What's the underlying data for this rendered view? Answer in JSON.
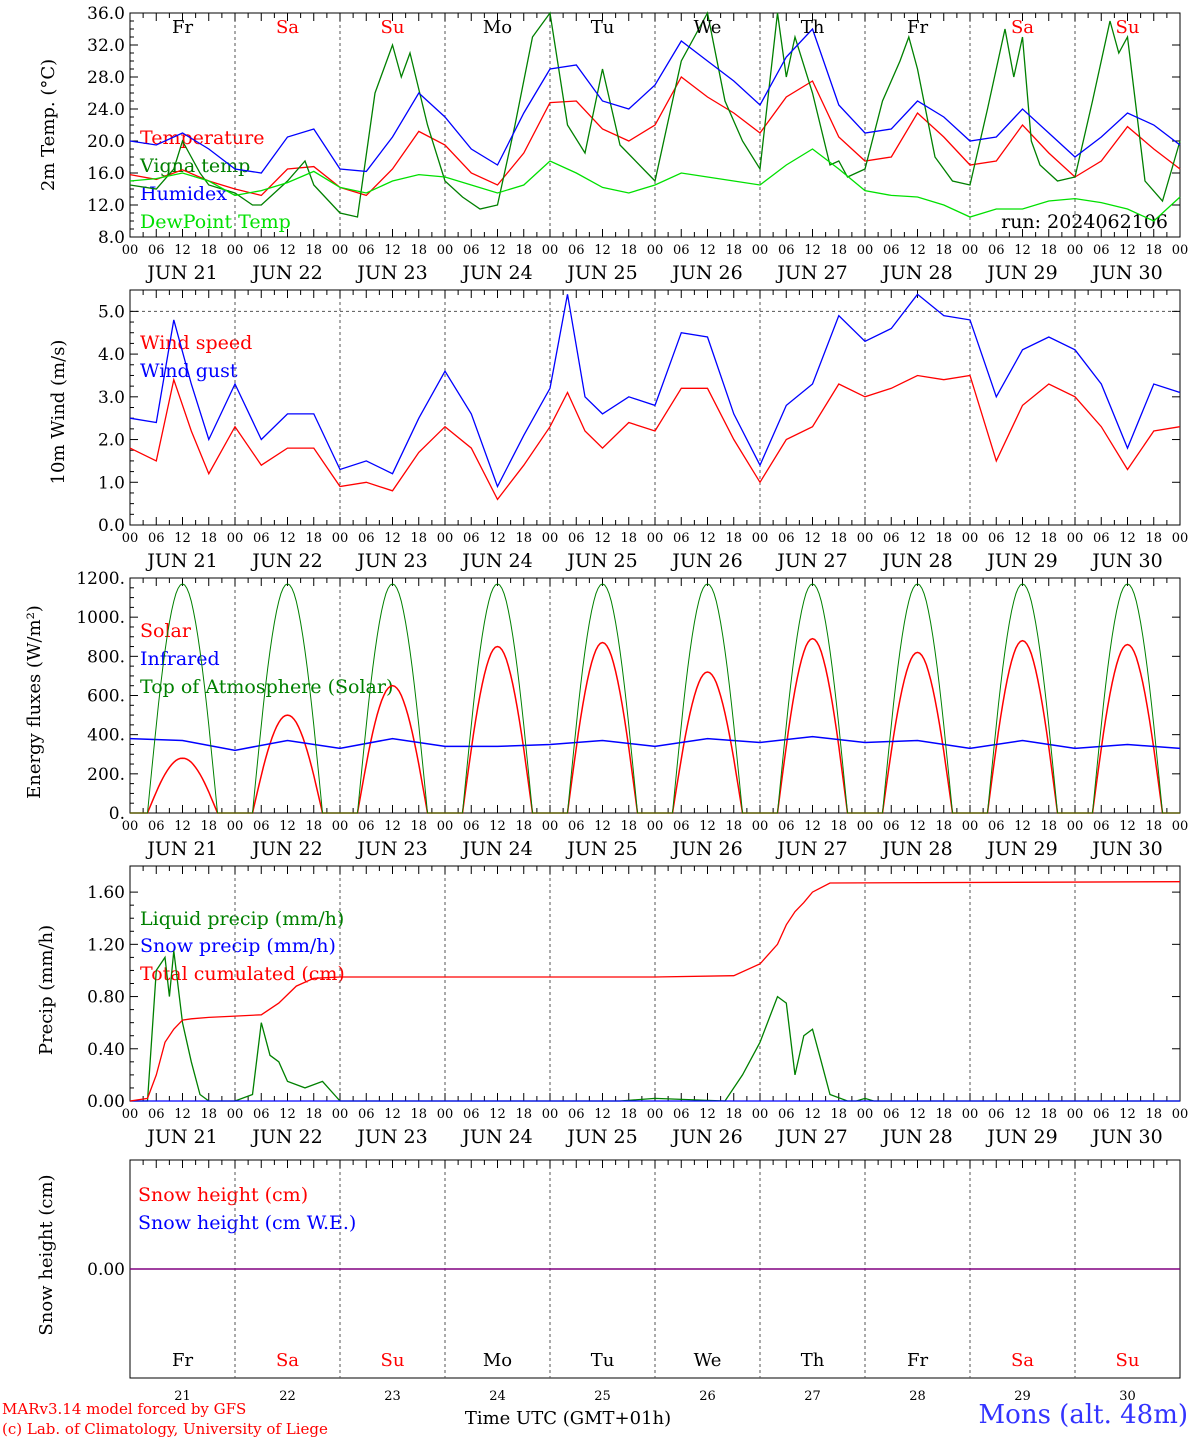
{
  "days": [
    "Fr",
    "Sa",
    "Su",
    "Mo",
    "Tu",
    "We",
    "Th",
    "Fr",
    "Sa",
    "Su"
  ],
  "day_colors": [
    "#000000",
    "#ff0000",
    "#ff0000",
    "#000000",
    "#000000",
    "#000000",
    "#000000",
    "#000000",
    "#ff0000",
    "#ff0000"
  ],
  "dates": [
    "JUN 21",
    "JUN 22",
    "JUN 23",
    "JUN 24",
    "JUN 25",
    "JUN 26",
    "JUN 27",
    "JUN 28",
    "JUN 29",
    "JUN 30"
  ],
  "date_numbers": [
    "21",
    "22",
    "23",
    "24",
    "25",
    "26",
    "27",
    "28",
    "29",
    "30"
  ],
  "hour_labels": [
    "00",
    "06",
    "12",
    "18"
  ],
  "run_label": "run: 2024062106",
  "xlabel": "Time UTC (GMT+01h)",
  "credit_line1": "MARv3.14 model forced by GFS",
  "credit_line2": "(c) Lab. of Climatology, University of Liege",
  "station": "Mons (alt. 48m)",
  "colors": {
    "red": "#ff0000",
    "green": "#008000",
    "blue": "#0000ff",
    "lightgreen": "#00e000",
    "purple": "#800080"
  },
  "chart_data": [
    {
      "type": "line",
      "ylabel": "2m Temp. (°C)",
      "ylim": [
        8,
        36
      ],
      "y_ticks": [
        "8.0",
        "12.0",
        "16.0",
        "20.0",
        "24.0",
        "28.0",
        "32.0",
        "36.0"
      ],
      "x_unit": "hours since JUN 21 00 UTC",
      "series": [
        {
          "name": "Temperature",
          "color": "#ff0000",
          "x": [
            0,
            6,
            12,
            18,
            24,
            30,
            36,
            42,
            48,
            54,
            60,
            66,
            72,
            78,
            84,
            90,
            96,
            102,
            108,
            114,
            120,
            126,
            132,
            138,
            144,
            150,
            156,
            162,
            168,
            174,
            180,
            186,
            192,
            198,
            204,
            210,
            216,
            222,
            228,
            234,
            240
          ],
          "y": [
            15.8,
            15.2,
            16.4,
            15.0,
            14.0,
            13.2,
            16.5,
            16.8,
            14.2,
            13.2,
            16.5,
            21.2,
            19.5,
            16.0,
            14.5,
            18.5,
            24.8,
            25.0,
            21.5,
            20.0,
            22.0,
            28.0,
            25.5,
            23.5,
            21.0,
            25.5,
            27.5,
            20.5,
            17.5,
            18.0,
            23.5,
            20.5,
            17.0,
            17.5,
            22.0,
            18.5,
            15.5,
            17.5,
            21.8,
            19.0,
            16.5
          ]
        },
        {
          "name": "Vigna temp",
          "color": "#008000",
          "x": [
            0,
            6,
            10,
            12,
            16,
            18,
            24,
            28,
            30,
            36,
            40,
            42,
            48,
            52,
            56,
            60,
            62,
            64,
            68,
            72,
            76,
            80,
            84,
            88,
            92,
            96,
            100,
            104,
            108,
            112,
            120,
            126,
            132,
            136,
            140,
            144,
            148,
            150,
            152,
            156,
            160,
            162,
            164,
            168,
            172,
            176,
            178,
            180,
            184,
            188,
            192,
            196,
            200,
            202,
            204,
            206,
            208,
            212,
            216,
            220,
            224,
            226,
            228,
            232,
            236,
            240
          ],
          "y": [
            14.5,
            14.0,
            16.5,
            20.0,
            16.0,
            14.5,
            13.5,
            12.0,
            12.0,
            15.0,
            17.5,
            14.5,
            11.0,
            10.5,
            26.0,
            32.0,
            28.0,
            31.0,
            22.0,
            15.0,
            13.0,
            11.5,
            12.0,
            22.0,
            33.0,
            36.0,
            22.0,
            18.5,
            29.0,
            19.5,
            15.0,
            30.0,
            36.0,
            25.0,
            20.0,
            16.5,
            36.0,
            28.0,
            33.0,
            26.0,
            17.0,
            17.5,
            15.5,
            16.5,
            25.0,
            30.0,
            33.0,
            29.0,
            18.0,
            15.0,
            14.5,
            24.0,
            34.0,
            28.0,
            33.0,
            20.0,
            17.0,
            15.0,
            15.5,
            25.0,
            35.0,
            31.0,
            33.0,
            15.0,
            12.5,
            20.0
          ]
        },
        {
          "name": "Humidex",
          "color": "#0000ff",
          "x": [
            0,
            6,
            12,
            18,
            24,
            30,
            36,
            42,
            48,
            54,
            60,
            66,
            72,
            78,
            84,
            90,
            96,
            102,
            108,
            114,
            120,
            126,
            132,
            138,
            144,
            150,
            156,
            162,
            168,
            174,
            180,
            186,
            192,
            198,
            204,
            210,
            216,
            222,
            228,
            234,
            240
          ],
          "y": [
            20.0,
            19.5,
            21.0,
            19.0,
            16.5,
            16.0,
            20.5,
            21.5,
            16.5,
            16.2,
            20.5,
            26.0,
            23.0,
            19.0,
            17.0,
            23.5,
            29.0,
            29.5,
            25.0,
            24.0,
            27.0,
            32.5,
            30.0,
            27.5,
            24.5,
            30.5,
            34.0,
            24.5,
            21.0,
            21.5,
            25.0,
            23.0,
            20.0,
            20.5,
            24.0,
            21.0,
            18.0,
            20.5,
            23.5,
            22.0,
            19.5
          ]
        },
        {
          "name": "DewPoint Temp",
          "color": "#00e000",
          "x": [
            0,
            6,
            12,
            18,
            24,
            30,
            36,
            42,
            48,
            54,
            60,
            66,
            72,
            78,
            84,
            90,
            96,
            102,
            108,
            114,
            120,
            126,
            132,
            138,
            144,
            150,
            156,
            162,
            168,
            174,
            180,
            186,
            192,
            198,
            204,
            210,
            216,
            222,
            228,
            234,
            240
          ],
          "y": [
            15.0,
            15.3,
            16.0,
            15.0,
            13.2,
            13.8,
            14.8,
            16.2,
            14.2,
            13.5,
            15.0,
            15.8,
            15.5,
            14.5,
            13.5,
            14.5,
            17.5,
            16.0,
            14.2,
            13.5,
            14.5,
            16.0,
            15.5,
            15.0,
            14.5,
            17.0,
            19.0,
            16.5,
            13.8,
            13.2,
            13.0,
            12.0,
            10.5,
            11.5,
            11.5,
            12.5,
            12.8,
            12.3,
            11.5,
            10.0,
            13.0
          ]
        }
      ]
    },
    {
      "type": "line",
      "ylabel": "10m Wind (m/s)",
      "ylim": [
        0,
        5.5
      ],
      "y_ticks": [
        "0.0",
        "1.0",
        "2.0",
        "3.0",
        "4.0",
        "5.0"
      ],
      "x_unit": "hours since JUN 21 00 UTC",
      "series": [
        {
          "name": "Wind speed",
          "color": "#ff0000",
          "x": [
            0,
            6,
            10,
            14,
            18,
            24,
            30,
            36,
            42,
            48,
            54,
            60,
            66,
            72,
            78,
            84,
            90,
            96,
            100,
            104,
            108,
            114,
            120,
            126,
            132,
            138,
            144,
            150,
            156,
            162,
            168,
            174,
            180,
            186,
            192,
            198,
            204,
            210,
            216,
            222,
            228,
            234,
            240
          ],
          "y": [
            1.8,
            1.5,
            3.4,
            2.2,
            1.2,
            2.3,
            1.4,
            1.8,
            1.8,
            0.9,
            1.0,
            0.8,
            1.7,
            2.3,
            1.8,
            0.6,
            1.4,
            2.3,
            3.1,
            2.2,
            1.8,
            2.4,
            2.2,
            3.2,
            3.2,
            2.0,
            1.0,
            2.0,
            2.3,
            3.3,
            3.0,
            3.2,
            3.5,
            3.4,
            3.5,
            1.5,
            2.8,
            3.3,
            3.0,
            2.3,
            1.3,
            2.2,
            2.3
          ]
        },
        {
          "name": "Wind gust",
          "color": "#0000ff",
          "x": [
            0,
            6,
            10,
            14,
            18,
            24,
            30,
            36,
            42,
            48,
            54,
            60,
            66,
            72,
            78,
            84,
            90,
            96,
            100,
            104,
            108,
            114,
            120,
            126,
            132,
            138,
            144,
            150,
            156,
            162,
            168,
            174,
            180,
            186,
            192,
            198,
            204,
            210,
            216,
            222,
            228,
            234,
            240
          ],
          "y": [
            2.5,
            2.4,
            4.8,
            3.3,
            2.0,
            3.3,
            2.0,
            2.6,
            2.6,
            1.3,
            1.5,
            1.2,
            2.5,
            3.6,
            2.6,
            0.9,
            2.1,
            3.2,
            5.4,
            3.0,
            2.6,
            3.0,
            2.8,
            4.5,
            4.4,
            2.6,
            1.4,
            2.8,
            3.3,
            4.9,
            4.3,
            4.6,
            5.4,
            4.9,
            4.8,
            3.0,
            4.1,
            4.4,
            4.1,
            3.3,
            1.8,
            3.3,
            3.1
          ]
        }
      ]
    },
    {
      "type": "line",
      "ylabel": "Energy fluxes (W/m²)",
      "ylim": [
        0,
        1200
      ],
      "y_ticks": [
        "0.",
        "200.",
        "400.",
        "600.",
        "800.",
        "1000.",
        "1200."
      ],
      "x_unit": "hours since JUN 21 00 UTC",
      "series": [
        {
          "name": "Solar",
          "color": "#ff0000",
          "daily_peak": [
            280,
            500,
            650,
            850,
            870,
            720,
            890,
            820,
            880,
            860
          ]
        },
        {
          "name": "Infrared",
          "color": "#0000ff",
          "x": [
            0,
            12,
            24,
            36,
            48,
            60,
            72,
            84,
            96,
            108,
            120,
            132,
            144,
            156,
            168,
            180,
            192,
            204,
            216,
            228,
            240
          ],
          "y": [
            380,
            370,
            320,
            370,
            330,
            380,
            340,
            340,
            350,
            370,
            340,
            380,
            360,
            390,
            360,
            370,
            330,
            370,
            330,
            350,
            330
          ]
        },
        {
          "name": "Top of Atmosphere (Solar)",
          "color": "#008000",
          "daily_peak": [
            1170,
            1170,
            1170,
            1170,
            1170,
            1170,
            1170,
            1170,
            1170,
            1170
          ]
        }
      ]
    },
    {
      "type": "line",
      "ylabel": "Precip (mm/h)",
      "ylim": [
        0,
        1.8
      ],
      "y_ticks": [
        "0.00",
        "0.40",
        "0.80",
        "1.20",
        "1.60"
      ],
      "x_unit": "hours since JUN 21 00 UTC",
      "series": [
        {
          "name": "Liquid precip (mm/h)",
          "color": "#008000",
          "x": [
            0,
            4,
            6,
            8,
            9,
            10,
            12,
            14,
            16,
            18,
            24,
            28,
            30,
            32,
            34,
            36,
            40,
            44,
            48,
            112,
            120,
            136,
            140,
            144,
            148,
            150,
            152,
            154,
            156,
            158,
            160,
            164,
            166,
            168,
            170,
            240
          ],
          "y": [
            0,
            0,
            1.0,
            1.1,
            0.8,
            1.15,
            0.6,
            0.3,
            0.05,
            0,
            0,
            0.05,
            0.6,
            0.35,
            0.3,
            0.15,
            0.1,
            0.15,
            0,
            0,
            0.02,
            0,
            0.2,
            0.45,
            0.8,
            0.75,
            0.2,
            0.5,
            0.55,
            0.3,
            0.05,
            0,
            0,
            0.02,
            0,
            0
          ]
        },
        {
          "name": "Snow precip (mm/h)",
          "color": "#0000ff",
          "x": [
            0,
            240
          ],
          "y": [
            0,
            0
          ]
        },
        {
          "name": "Total cumulated (cm)",
          "color": "#ff0000",
          "x": [
            0,
            4,
            6,
            8,
            10,
            12,
            14,
            18,
            24,
            30,
            34,
            38,
            42,
            48,
            120,
            138,
            144,
            148,
            150,
            152,
            154,
            156,
            160,
            240
          ],
          "y": [
            0,
            0.02,
            0.2,
            0.45,
            0.55,
            0.62,
            0.63,
            0.64,
            0.65,
            0.66,
            0.75,
            0.88,
            0.94,
            0.95,
            0.95,
            0.96,
            1.05,
            1.2,
            1.35,
            1.45,
            1.52,
            1.6,
            1.67,
            1.68
          ]
        }
      ]
    },
    {
      "type": "line",
      "ylabel": "Snow height (cm)",
      "y_ticks": [
        "0.00"
      ],
      "x_unit": "hours since JUN 21 00 UTC",
      "series": [
        {
          "name": "Snow height (cm)",
          "color": "#ff0000",
          "x": [
            0,
            240
          ],
          "y": [
            0,
            0
          ]
        },
        {
          "name": "Snow height (cm W.E.)",
          "color": "#0000ff",
          "x": [
            0,
            240
          ],
          "y": [
            0,
            0
          ]
        }
      ]
    }
  ]
}
